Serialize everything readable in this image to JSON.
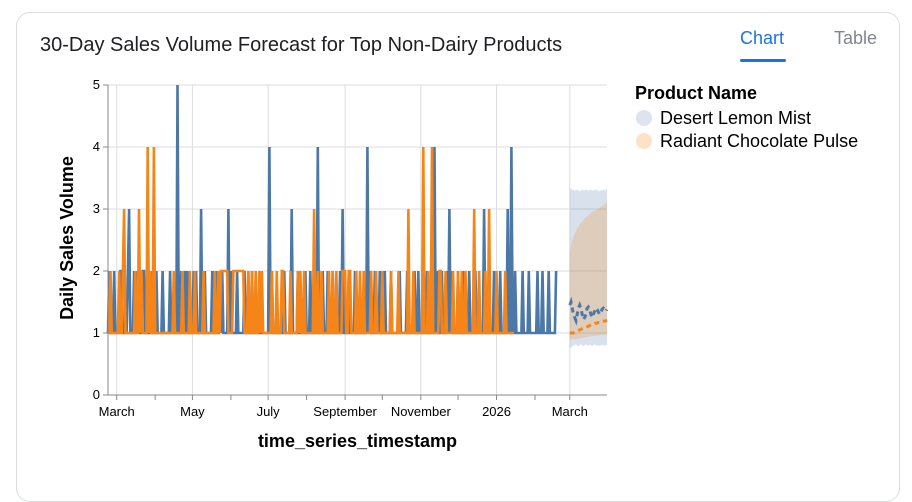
{
  "header": {
    "title": "30-Day Sales Volume Forecast for Top Non-Dairy Products"
  },
  "tabs": [
    {
      "label": "Chart",
      "active": true
    },
    {
      "label": "Table",
      "active": false
    }
  ],
  "legend": {
    "title": "Product Name"
  },
  "chart_data": {
    "type": "line",
    "xlabel": "time_series_timestamp",
    "ylabel": "Daily Sales Volume",
    "ylim": [
      0,
      5
    ],
    "yticks": [
      0,
      1,
      2,
      3,
      4,
      5
    ],
    "xticks": [
      "March",
      "May",
      "July",
      "September",
      "November",
      "2026",
      "March"
    ],
    "x_range": [
      "2025-02-22",
      "2026-03-31"
    ],
    "grid": true,
    "legend_position": "right",
    "series": [
      {
        "name": "Desert Lemon Mist",
        "color": "#4c78a8",
        "start": "2025-02-22",
        "values": [
          1,
          2,
          1,
          1,
          1,
          2,
          1,
          1,
          1,
          1,
          2,
          2,
          1,
          1,
          1,
          1,
          2,
          3,
          1,
          1,
          1,
          2,
          1,
          2,
          1,
          2,
          1,
          1,
          2,
          2,
          1,
          1,
          2,
          1,
          1,
          2,
          1,
          1,
          1,
          2,
          1,
          1,
          1,
          1,
          2,
          1,
          1,
          1,
          1,
          1,
          2,
          1,
          1,
          1,
          1,
          1,
          5,
          1,
          1,
          2,
          1,
          1,
          2,
          1,
          2,
          1,
          1,
          1,
          1,
          2,
          1,
          2,
          1,
          1,
          1,
          3,
          1,
          1,
          2,
          1,
          1,
          1,
          1,
          1,
          2,
          1,
          1,
          2,
          1,
          1,
          2,
          1,
          2,
          1,
          1,
          1,
          1,
          3,
          1,
          2,
          1,
          1,
          1,
          1,
          2,
          1,
          1,
          1,
          1,
          1,
          2,
          1,
          1,
          2,
          1,
          1,
          2,
          1,
          1,
          1,
          1,
          1,
          1,
          1,
          1,
          1,
          1,
          1,
          1,
          1,
          4,
          1,
          2,
          1,
          1,
          1,
          1,
          1,
          1,
          1,
          1,
          1,
          2,
          1,
          1,
          1,
          1,
          1,
          3,
          1,
          1,
          1,
          1,
          2,
          1,
          1,
          1,
          1,
          1,
          2,
          1,
          1,
          1,
          2,
          1,
          1,
          1,
          1,
          1,
          4,
          1,
          1,
          1,
          2,
          1,
          1,
          1,
          2,
          1,
          1,
          1,
          2,
          1,
          1,
          1,
          1,
          1,
          2,
          1,
          3,
          1,
          1,
          1,
          1,
          2,
          1,
          1,
          1,
          1,
          2,
          1,
          1,
          1,
          1,
          1,
          1,
          1,
          1,
          1,
          4,
          1,
          2,
          1,
          1,
          1,
          2,
          1,
          1,
          1,
          2,
          1,
          1,
          1,
          2,
          1,
          1,
          1,
          1,
          2,
          1,
          1,
          1,
          1,
          1,
          1,
          2,
          1,
          1,
          1,
          1,
          1,
          2,
          1,
          1,
          1,
          1,
          1,
          2,
          1,
          1,
          2,
          1,
          1,
          1,
          1,
          1,
          1,
          2,
          1,
          1,
          1,
          1,
          1,
          4,
          1,
          2,
          1,
          1,
          1,
          2,
          1,
          1,
          1,
          2,
          1,
          3,
          1,
          2,
          1,
          1,
          1,
          1,
          2,
          1,
          1,
          1,
          2,
          1,
          1,
          1,
          1,
          2,
          1,
          1,
          1,
          1,
          2,
          1,
          1,
          1,
          1,
          1,
          1,
          3,
          1,
          1,
          1,
          2,
          1,
          1,
          1,
          2,
          1,
          1,
          1,
          1,
          2,
          1,
          1,
          1,
          1,
          1,
          3,
          1,
          1,
          4,
          1,
          1,
          2,
          1,
          1,
          1,
          1,
          1,
          2,
          1,
          1,
          1,
          1,
          2,
          1,
          1,
          1,
          1,
          1,
          1,
          2,
          1,
          1,
          1,
          2,
          1,
          1,
          1,
          1,
          2,
          1,
          1,
          1,
          1,
          1,
          2
        ]
      },
      {
        "name": "Radiant Chocolate Pulse",
        "color": "#f58518",
        "start": "2025-02-22",
        "values": [
          1,
          1,
          2,
          1,
          1,
          1,
          1,
          1,
          1,
          2,
          1,
          1,
          2,
          3,
          1,
          1,
          1,
          1,
          1,
          1,
          1,
          1,
          2,
          1,
          1,
          3,
          1,
          2,
          1,
          1,
          1,
          1,
          4,
          1,
          2,
          1,
          1,
          4,
          1,
          1,
          1,
          1,
          1,
          1,
          1,
          1,
          1,
          1,
          1,
          1,
          1,
          1,
          1,
          2,
          1,
          1,
          1,
          1,
          1,
          1,
          2,
          1,
          1,
          1,
          1,
          1,
          2,
          1,
          1,
          1,
          2,
          1,
          1,
          1,
          1,
          1,
          1,
          2,
          1,
          1,
          1,
          1,
          1,
          1,
          1,
          1,
          2,
          1,
          1,
          2,
          1,
          2,
          2,
          2,
          2,
          2,
          2,
          1,
          1,
          1,
          1,
          2,
          2,
          2,
          2,
          2,
          2,
          2,
          2,
          2,
          1,
          1,
          1,
          2,
          1,
          1,
          2,
          1,
          1,
          2,
          1,
          1,
          2,
          1,
          2,
          1,
          1,
          1,
          1,
          1,
          1,
          1,
          2,
          1,
          1,
          1,
          2,
          1,
          1,
          1,
          2,
          2,
          1,
          1,
          1,
          1,
          1,
          2,
          1,
          1,
          1,
          1,
          1,
          2,
          1,
          2,
          1,
          1,
          2,
          1,
          1,
          1,
          1,
          1,
          1,
          1,
          3,
          1,
          1,
          2,
          1,
          1,
          2,
          1,
          1,
          1,
          1,
          1,
          2,
          1,
          1,
          2,
          1,
          1,
          2,
          1,
          1,
          1,
          1,
          2,
          2,
          2,
          1,
          1,
          2,
          2,
          1,
          1,
          1,
          1,
          2,
          1,
          1,
          2,
          1,
          1,
          2,
          1,
          1,
          1,
          1,
          1,
          2,
          1,
          1,
          1,
          2,
          1,
          1,
          1,
          1,
          2,
          1,
          1,
          1,
          1,
          1,
          1,
          2,
          1,
          1,
          1,
          1,
          1,
          2,
          1,
          1,
          1,
          1,
          1,
          1,
          1,
          3,
          1,
          1,
          1,
          2,
          1,
          1,
          1,
          1,
          1,
          1,
          1,
          4,
          1,
          1,
          1,
          2,
          1,
          1,
          4,
          1,
          1,
          1,
          1,
          1,
          2,
          2,
          1,
          1,
          1,
          2,
          1,
          1,
          1,
          1,
          1,
          2,
          1,
          1,
          1,
          2,
          1,
          1,
          2,
          1,
          1,
          2,
          1,
          1,
          1,
          1,
          1,
          1,
          3,
          1,
          1,
          1,
          2,
          1,
          1,
          1,
          1,
          2,
          1,
          1,
          3,
          1,
          1,
          1,
          1,
          1,
          2,
          1,
          1,
          1,
          1,
          1,
          1,
          2,
          1,
          1,
          1,
          1,
          1,
          1,
          1
        ]
      }
    ],
    "forecast": [
      {
        "name": "Desert Lemon Mist",
        "start": "2026-03-01",
        "values": [
          1.45,
          1.5,
          1.4,
          1.3,
          1.25,
          1.2,
          1.3,
          1.4,
          1.45,
          1.4,
          1.3,
          1.22,
          1.25,
          1.3,
          1.4,
          1.42,
          1.38,
          1.3,
          1.25,
          1.3,
          1.35,
          1.4,
          1.38,
          1.34,
          1.3,
          1.33,
          1.38,
          1.4,
          1.38,
          1.35,
          1.38
        ],
        "lower": [
          0.75,
          0.77,
          0.78,
          0.8,
          0.8,
          0.82,
          0.8,
          0.78,
          0.8,
          0.82,
          0.8,
          0.79,
          0.8,
          0.82,
          0.8,
          0.8,
          0.81,
          0.8,
          0.79,
          0.8,
          0.82,
          0.8,
          0.8,
          0.8,
          0.79,
          0.8,
          0.81,
          0.8,
          0.8,
          0.8,
          0.8
        ],
        "upper": [
          3.3,
          3.35,
          3.3,
          3.32,
          3.3,
          3.3,
          3.32,
          3.3,
          3.28,
          3.3,
          3.32,
          3.3,
          3.3,
          3.32,
          3.3,
          3.3,
          3.3,
          3.32,
          3.3,
          3.3,
          3.3,
          3.32,
          3.3,
          3.3,
          3.28,
          3.3,
          3.3,
          3.32,
          3.3,
          3.3,
          3.35
        ]
      },
      {
        "name": "Radiant Chocolate Pulse",
        "start": "2026-03-01",
        "values": [
          1.0,
          1.0,
          1.0,
          1.0,
          1.01,
          1.02,
          1.03,
          1.04,
          1.05,
          1.06,
          1.07,
          1.08,
          1.08,
          1.09,
          1.1,
          1.11,
          1.12,
          1.13,
          1.13,
          1.14,
          1.15,
          1.16,
          1.16,
          1.17,
          1.17,
          1.18,
          1.18,
          1.19,
          1.19,
          1.2,
          1.21
        ],
        "lower": [
          0.88,
          0.9,
          0.9,
          0.9,
          0.9,
          0.9,
          0.9,
          0.9,
          0.91,
          0.92,
          0.92,
          0.92,
          0.93,
          0.93,
          0.94,
          0.94,
          0.94,
          0.95,
          0.95,
          0.95,
          0.95,
          0.96,
          0.96,
          0.96,
          0.96,
          0.97,
          0.97,
          0.97,
          0.97,
          0.98,
          0.98
        ],
        "upper": [
          2.3,
          2.4,
          2.5,
          2.55,
          2.6,
          2.65,
          2.7,
          2.72,
          2.75,
          2.78,
          2.8,
          2.82,
          2.85,
          2.87,
          2.88,
          2.9,
          2.92,
          2.93,
          2.95,
          2.96,
          2.97,
          2.98,
          3.0,
          3.0,
          3.02,
          3.03,
          3.05,
          3.06,
          3.08,
          3.1,
          3.12
        ]
      }
    ]
  }
}
